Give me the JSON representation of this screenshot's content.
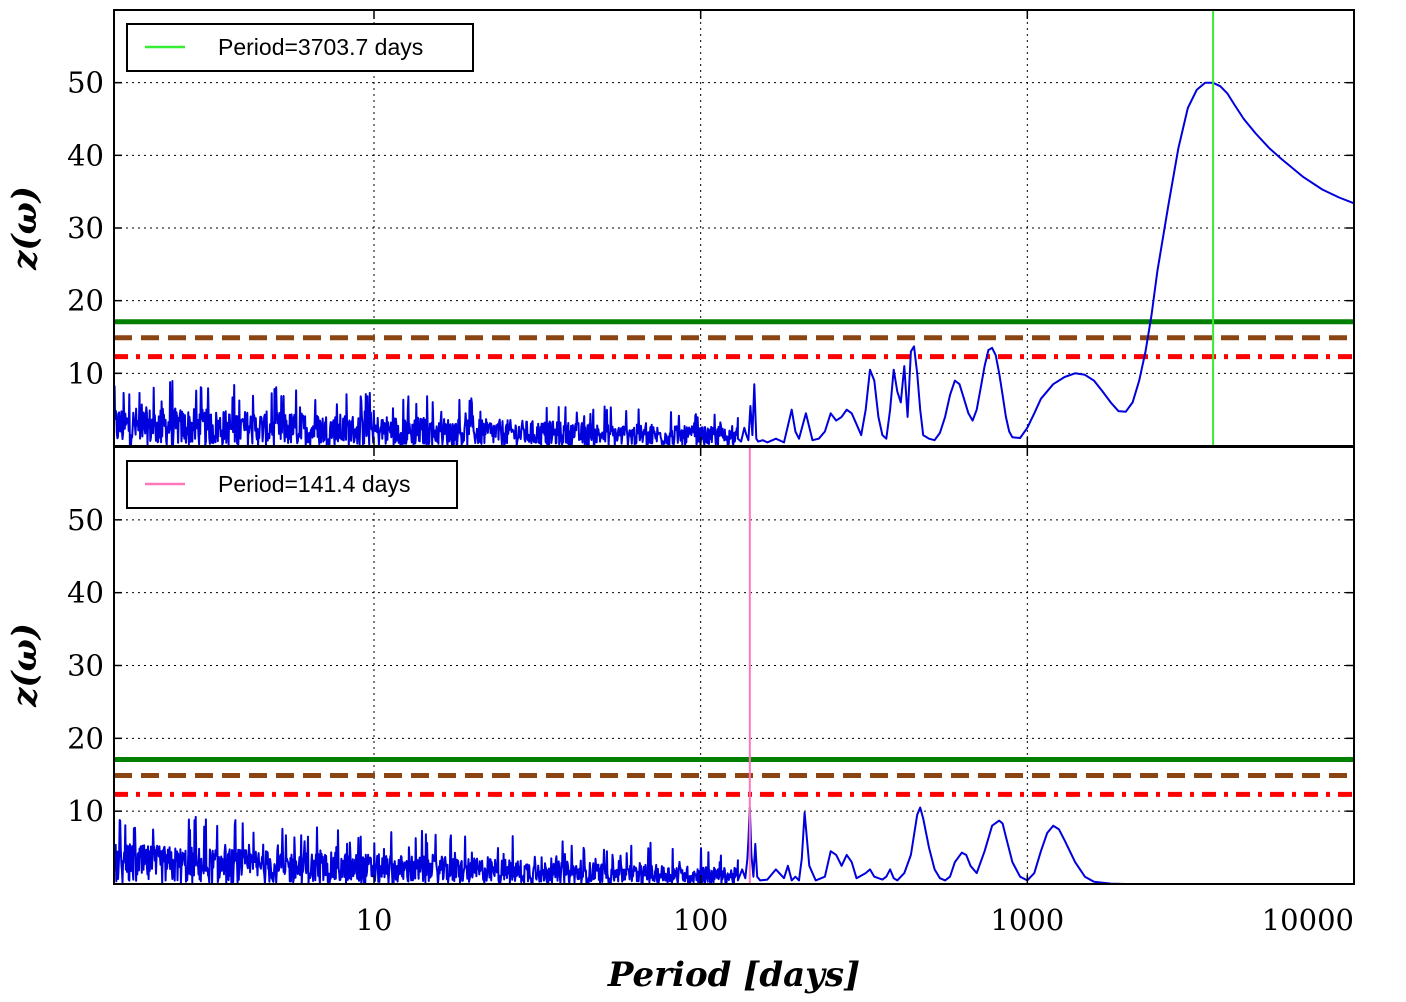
{
  "chart_data": [
    {
      "type": "line",
      "panel": "top",
      "xscale": "log",
      "xlim": [
        1.6,
        10000
      ],
      "ylim": [
        0,
        60
      ],
      "ylabel": "z(ω)",
      "yticks": [
        10,
        20,
        30,
        40,
        50
      ],
      "grid": true,
      "legend": {
        "position": "top-left",
        "label": "Period=3703.7 days",
        "color": "#33ee33"
      },
      "marker_line": {
        "period": 3703.7,
        "color": "#33ee33"
      },
      "thresholds": [
        {
          "value": 17.1,
          "style": "solid",
          "color": "#007f00"
        },
        {
          "value": 14.9,
          "style": "dashed",
          "color": "#8b4513"
        },
        {
          "value": 12.3,
          "style": "dashdot",
          "color": "#ff0000"
        }
      ],
      "series": [
        {
          "name": "periodogram",
          "color": "#0000dd",
          "noise": {
            "x_from": 1.6,
            "x_to": 130,
            "y_start": 5.5,
            "y_end": 2.5,
            "peak_start": 9.5,
            "peak_end": 4.5
          },
          "x": [
            130,
            133,
            136,
            138,
            140,
            142,
            144,
            146,
            148,
            150,
            155,
            160,
            170,
            180,
            190,
            195,
            200,
            210,
            220,
            230,
            240,
            250,
            260,
            270,
            280,
            290,
            300,
            310,
            320,
            330,
            340,
            350,
            360,
            370,
            380,
            390,
            400,
            410,
            420,
            430,
            440,
            450,
            460,
            470,
            480,
            500,
            520,
            540,
            560,
            580,
            600,
            620,
            640,
            660,
            680,
            700,
            720,
            740,
            760,
            780,
            800,
            820,
            840,
            860,
            880,
            900,
            950,
            1000,
            1050,
            1100,
            1200,
            1300,
            1400,
            1500,
            1600,
            1700,
            1800,
            1900,
            2000,
            2100,
            2200,
            2300,
            2400,
            2500,
            2700,
            2900,
            3100,
            3300,
            3500,
            3700,
            3900,
            4100,
            4300,
            4600,
            5000,
            5500,
            6000,
            7000,
            8000,
            9000,
            10000
          ],
          "y": [
            1.0,
            0.6,
            2.5,
            1.5,
            0.8,
            5.5,
            1.5,
            8.5,
            1.0,
            0.6,
            0.8,
            0.5,
            1.0,
            0.5,
            5.0,
            2.0,
            1.0,
            4.5,
            0.8,
            1.0,
            2.0,
            4.5,
            3.5,
            4.0,
            5.0,
            4.5,
            3.0,
            1.5,
            5.0,
            10.5,
            9.0,
            4.0,
            1.5,
            1.0,
            5.0,
            10.5,
            7.5,
            6.0,
            11.0,
            4.0,
            13.0,
            13.7,
            10.0,
            5.0,
            1.5,
            1.0,
            0.8,
            1.8,
            4.0,
            7.0,
            9.0,
            8.5,
            6.5,
            4.5,
            3.5,
            5.0,
            8.0,
            11.0,
            13.2,
            13.5,
            12.5,
            10.0,
            7.0,
            4.0,
            2.0,
            1.2,
            1.1,
            2.5,
            4.5,
            6.5,
            8.5,
            9.5,
            10.0,
            9.8,
            9.0,
            7.5,
            6.0,
            4.8,
            4.7,
            6.0,
            9.0,
            13.0,
            18.0,
            24.0,
            33.0,
            41.0,
            46.5,
            49.0,
            50.0,
            50.0,
            49.5,
            48.5,
            47.0,
            45.0,
            43.0,
            41.0,
            39.5,
            37.0,
            35.3,
            34.2,
            33.4
          ]
        }
      ]
    },
    {
      "type": "line",
      "panel": "bottom",
      "xscale": "log",
      "xlim": [
        1.6,
        10000
      ],
      "ylim": [
        0,
        60
      ],
      "ylabel": "z(ω)",
      "xlabel": "Period [days]",
      "yticks": [
        10,
        20,
        30,
        40,
        50
      ],
      "xticks": [
        10,
        100,
        1000,
        10000
      ],
      "xtick_labels": [
        "10",
        "100",
        "1000",
        "10000"
      ],
      "grid": true,
      "legend": {
        "position": "top-left",
        "label": "Period=141.4 days",
        "color": "#ff77bb"
      },
      "marker_line": {
        "period": 141.4,
        "color": "#ff77bb"
      },
      "thresholds": [
        {
          "value": 17.1,
          "style": "solid",
          "color": "#007f00"
        },
        {
          "value": 14.9,
          "style": "dashed",
          "color": "#8b4513"
        },
        {
          "value": 12.3,
          "style": "dashdot",
          "color": "#ff0000"
        }
      ],
      "series": [
        {
          "name": "periodogram",
          "color": "#0000dd",
          "noise": {
            "x_from": 1.6,
            "x_to": 130,
            "y_start": 5.5,
            "y_end": 2.2,
            "peak_start": 10.0,
            "peak_end": 5.0
          },
          "x": [
            130,
            134,
            137,
            139,
            140,
            141.4,
            143,
            145,
            147,
            149,
            152,
            160,
            170,
            180,
            185,
            190,
            195,
            200,
            204,
            208,
            215,
            225,
            240,
            250,
            260,
            270,
            280,
            290,
            300,
            320,
            330,
            340,
            360,
            370,
            380,
            390,
            400,
            420,
            440,
            460,
            470,
            480,
            500,
            520,
            540,
            560,
            580,
            600,
            630,
            650,
            670,
            700,
            740,
            780,
            820,
            840,
            860,
            900,
            950,
            1000,
            1050,
            1100,
            1150,
            1200,
            1250,
            1300,
            1400,
            1500,
            1600,
            1800,
            2000,
            2500,
            3000,
            4000,
            6000,
            8000,
            10000
          ],
          "y": [
            0.5,
            2.0,
            0.8,
            3.5,
            6.0,
            10.5,
            4.0,
            1.0,
            5.5,
            1.0,
            0.5,
            0.6,
            2.0,
            0.8,
            2.5,
            0.5,
            1.0,
            0.5,
            3.5,
            9.8,
            2.5,
            0.5,
            1.0,
            4.5,
            4.0,
            2.5,
            4.0,
            3.0,
            0.8,
            1.5,
            2.0,
            1.0,
            0.6,
            1.0,
            2.0,
            0.8,
            0.5,
            1.5,
            4.0,
            9.5,
            10.5,
            9.0,
            5.0,
            2.0,
            0.8,
            0.5,
            1.0,
            3.0,
            4.3,
            4.0,
            2.5,
            1.5,
            4.5,
            8.0,
            8.7,
            8.3,
            6.5,
            3.0,
            1.0,
            0.5,
            1.5,
            4.5,
            7.0,
            8.0,
            7.5,
            6.0,
            3.0,
            1.0,
            0.3,
            0.05,
            0.0,
            0.0,
            0.0,
            0.0,
            0.0,
            0.0,
            0.0
          ]
        }
      ]
    }
  ]
}
